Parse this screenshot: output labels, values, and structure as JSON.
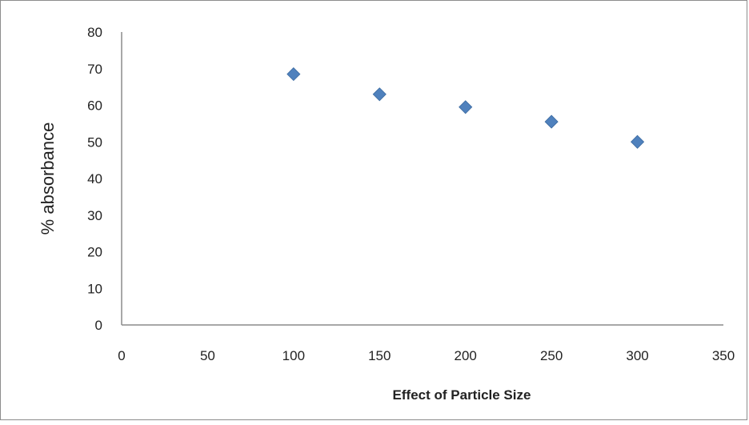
{
  "chart_data": {
    "type": "scatter",
    "title": "",
    "xlabel": "Effect of Particle Size",
    "ylabel": "% absorbance",
    "xlim": [
      0,
      350
    ],
    "ylim": [
      0,
      80
    ],
    "x_ticks": [
      "0",
      "50",
      "100",
      "150",
      "200",
      "250",
      "300",
      "350"
    ],
    "y_ticks": [
      "0",
      "10",
      "20",
      "30",
      "40",
      "50",
      "60",
      "70",
      "80"
    ],
    "grid": false,
    "legend": "none",
    "marker": "diamond",
    "series": [
      {
        "color": "#4f81bd",
        "points": [
          {
            "x": 100,
            "y": 68.5
          },
          {
            "x": 150,
            "y": 63
          },
          {
            "x": 200,
            "y": 59.5
          },
          {
            "x": 250,
            "y": 55.5
          },
          {
            "x": 300,
            "y": 50
          }
        ]
      }
    ]
  }
}
